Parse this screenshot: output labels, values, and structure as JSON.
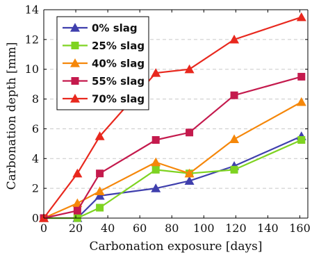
{
  "chart_data": {
    "type": "line",
    "xlabel": "Carbonation exposure [days]",
    "ylabel": "Carbonation depth [mm]",
    "xlim": [
      0,
      165
    ],
    "ylim": [
      0,
      14
    ],
    "xticks": [
      0,
      20,
      40,
      60,
      80,
      100,
      120,
      140,
      160
    ],
    "yticks": [
      0,
      2,
      4,
      6,
      8,
      10,
      12,
      14
    ],
    "grid": "horizontal dashed",
    "legend_position": "top-left",
    "x": [
      0,
      21,
      35,
      70,
      91,
      119,
      161
    ],
    "series": [
      {
        "name": "0% slag",
        "color": "#3f3fad",
        "marker": "triangle",
        "values": [
          0,
          0,
          1.5,
          2.0,
          2.5,
          3.5,
          5.5
        ]
      },
      {
        "name": "25% slag",
        "color": "#7ed321",
        "marker": "square",
        "values": [
          0,
          0,
          0.7,
          3.25,
          3.0,
          3.25,
          5.25
        ]
      },
      {
        "name": "40% slag",
        "color": "#f5870a",
        "marker": "triangle",
        "values": [
          0,
          1.0,
          1.8,
          3.75,
          3.0,
          5.3,
          7.8
        ]
      },
      {
        "name": "55% slag",
        "color": "#c41a4d",
        "marker": "square",
        "values": [
          0,
          0.5,
          3.0,
          5.25,
          5.75,
          8.25,
          9.5
        ]
      },
      {
        "name": "70% slag",
        "color": "#e8281e",
        "marker": "triangle",
        "values": [
          0,
          3.0,
          5.5,
          9.75,
          10.0,
          12.0,
          13.5
        ]
      }
    ]
  }
}
